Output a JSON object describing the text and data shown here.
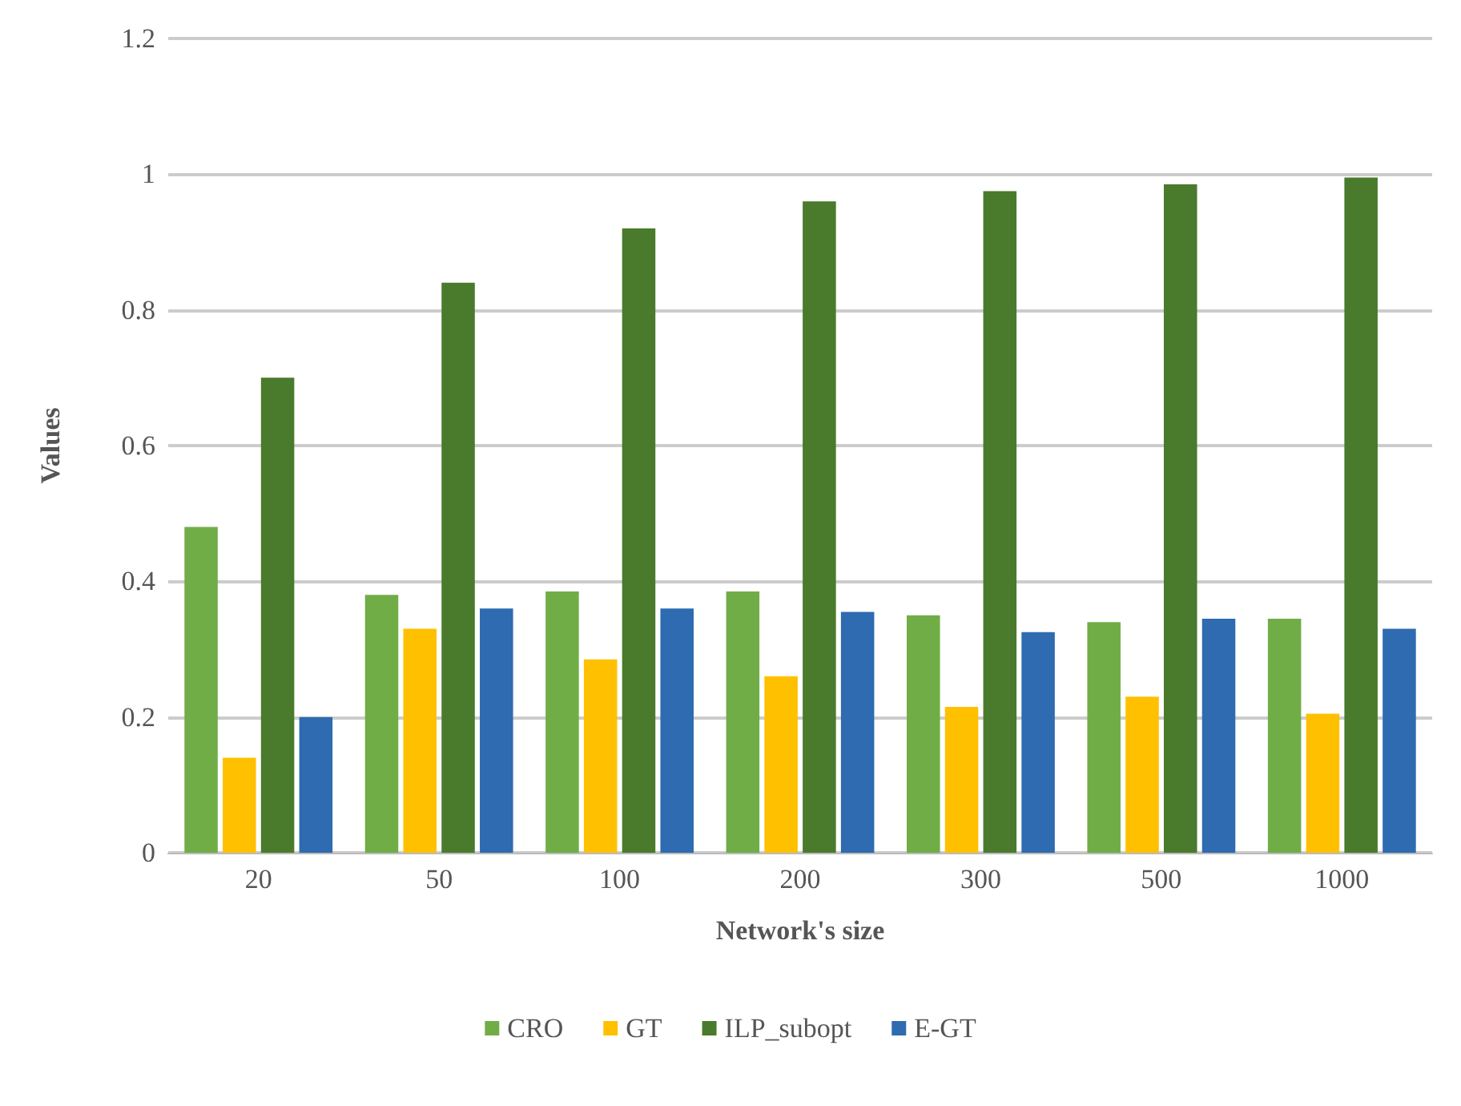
{
  "chart_data": {
    "type": "bar",
    "xlabel": "Network's size",
    "ylabel": "Values",
    "categories": [
      "20",
      "50",
      "100",
      "200",
      "300",
      "500",
      "1000"
    ],
    "series": [
      {
        "name": "CRO",
        "color": "#70ad47",
        "values": [
          0.48,
          0.38,
          0.385,
          0.385,
          0.35,
          0.34,
          0.345
        ]
      },
      {
        "name": "GT",
        "color": "#ffc000",
        "values": [
          0.14,
          0.33,
          0.285,
          0.26,
          0.215,
          0.23,
          0.205
        ]
      },
      {
        "name": "ILP_subopt",
        "color": "#4a7a2c",
        "values": [
          0.7,
          0.84,
          0.92,
          0.96,
          0.975,
          0.985,
          0.995
        ]
      },
      {
        "name": "E-GT",
        "color": "#2e6bb0",
        "values": [
          0.2,
          0.36,
          0.36,
          0.355,
          0.325,
          0.345,
          0.33
        ]
      }
    ],
    "ylim": [
      0,
      1.2
    ],
    "yticks": [
      0,
      0.2,
      0.4,
      0.6,
      0.8,
      1,
      1.2
    ],
    "grid": "y",
    "legend": "bottom"
  }
}
